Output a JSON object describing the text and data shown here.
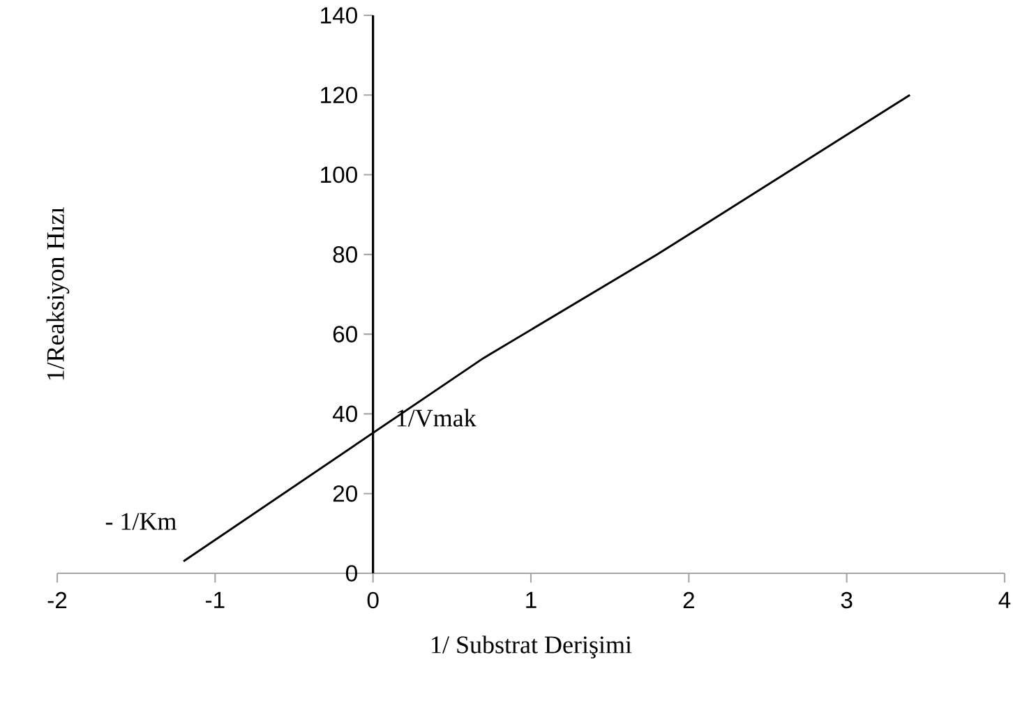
{
  "chart_data": {
    "type": "line",
    "xlabel": "1/ Substrat Derişimi",
    "ylabel": "1/Reaksiyon Hızı",
    "x": [
      -1.2,
      0.7,
      1.8,
      3.4
    ],
    "series": [
      {
        "color": "#000000",
        "values": [
          3,
          54,
          80,
          120
        ]
      }
    ],
    "xlim": [
      -2,
      4
    ],
    "ylim": [
      0,
      140
    ],
    "xticks": [
      -2,
      -1,
      0,
      1,
      2,
      3,
      4
    ],
    "yticks": [
      0,
      20,
      40,
      60,
      80,
      100,
      120,
      140
    ],
    "annotations": [
      "- 1/Km",
      "1/Vmak"
    ],
    "grid": false,
    "marker": "none",
    "line_style": "solid"
  }
}
